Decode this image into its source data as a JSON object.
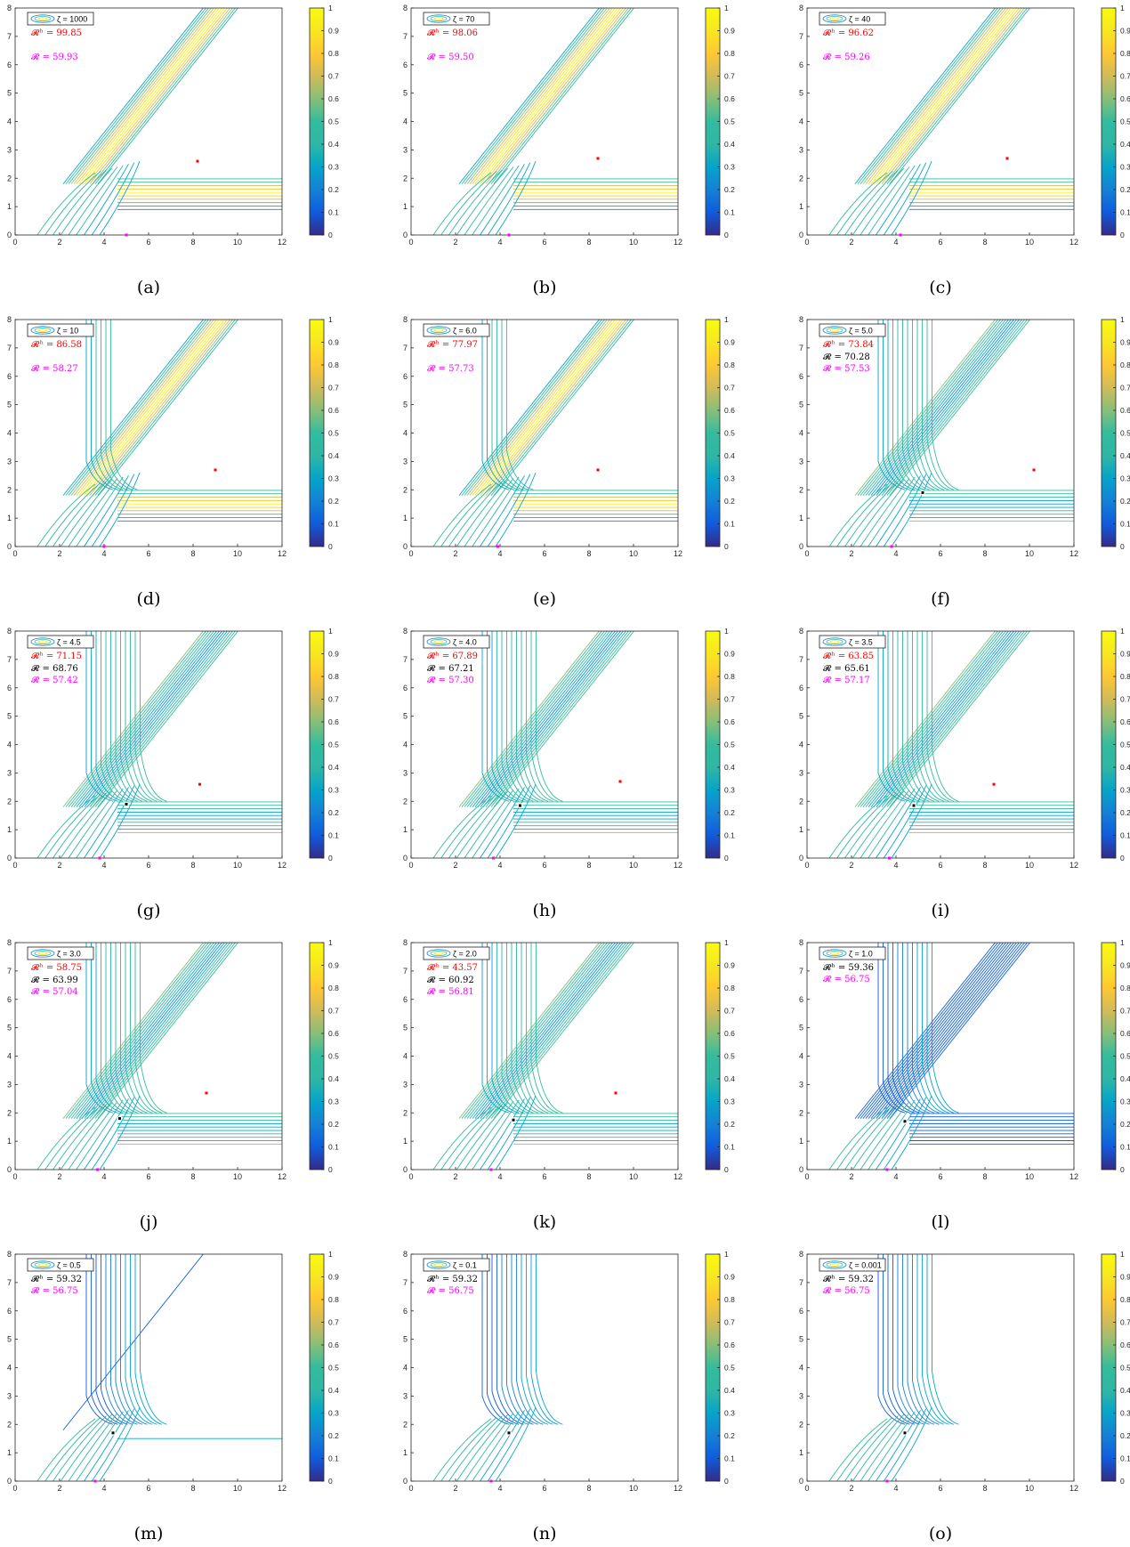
{
  "figure": {
    "x_ticks": [
      "0",
      "2",
      "4",
      "6",
      "8",
      "10",
      "12"
    ],
    "y_ticks": [
      "0",
      "1",
      "2",
      "3",
      "4",
      "5",
      "6",
      "7",
      "8"
    ],
    "colorbar_ticks": [
      "0",
      "0.1",
      "0.2",
      "0.3",
      "0.4",
      "0.5",
      "0.6",
      "0.7",
      "0.8",
      "0.9",
      "1"
    ],
    "colors": {
      "red_text": "#ff0000",
      "magenta_text": "#ff00ff",
      "black_text": "#000000"
    },
    "panels": [
      {
        "caption": "(a)",
        "zeta": "ζ = 1000",
        "lines": [
          {
            "prefix": "𝓡ʰ",
            "value": "= 99.85",
            "color": "red"
          },
          {
            "prefix": "𝓡",
            "value": "= 59.93",
            "color": "magenta"
          }
        ],
        "red_marker": [
          8.2,
          2.6
        ],
        "magenta_marker": [
          5.0,
          0
        ],
        "black_marker": null,
        "style": "A"
      },
      {
        "caption": "(b)",
        "zeta": "ζ = 70",
        "lines": [
          {
            "prefix": "𝓡ʰ",
            "value": "= 98.06",
            "color": "red"
          },
          {
            "prefix": "𝓡",
            "value": "= 59.50",
            "color": "magenta"
          }
        ],
        "red_marker": [
          8.4,
          2.7
        ],
        "magenta_marker": [
          4.4,
          0
        ],
        "black_marker": null,
        "style": "A"
      },
      {
        "caption": "(c)",
        "zeta": "ζ = 40",
        "lines": [
          {
            "prefix": "𝓡ʰ",
            "value": "= 96.62",
            "color": "red"
          },
          {
            "prefix": "𝓡",
            "value": "= 59.26",
            "color": "magenta"
          }
        ],
        "red_marker": [
          9.0,
          2.7
        ],
        "magenta_marker": [
          4.2,
          0
        ],
        "black_marker": null,
        "style": "A"
      },
      {
        "caption": "(d)",
        "zeta": "ζ = 10",
        "lines": [
          {
            "prefix": "𝓡ʰ",
            "value": "= 86.58",
            "color": "red"
          },
          {
            "prefix": "𝓡",
            "value": "= 58.27",
            "color": "magenta"
          }
        ],
        "red_marker": [
          9.0,
          2.7
        ],
        "magenta_marker": [
          4.0,
          0
        ],
        "black_marker": null,
        "style": "B"
      },
      {
        "caption": "(e)",
        "zeta": "ζ = 6.0",
        "lines": [
          {
            "prefix": "𝓡ʰ",
            "value": "= 77.97",
            "color": "red"
          },
          {
            "prefix": "𝓡",
            "value": "= 57.73",
            "color": "magenta"
          }
        ],
        "red_marker": [
          8.4,
          2.7
        ],
        "magenta_marker": [
          3.9,
          0
        ],
        "black_marker": null,
        "style": "B"
      },
      {
        "caption": "(f)",
        "zeta": "ζ = 5.0",
        "lines": [
          {
            "prefix": "𝓡ʰ",
            "value": "= 73.84",
            "color": "red"
          },
          {
            "prefix": "𝓡",
            "value": "= 70.28",
            "color": "black"
          },
          {
            "prefix": "𝓡",
            "value": "= 57.53",
            "color": "magenta"
          }
        ],
        "red_marker": [
          10.2,
          2.7
        ],
        "magenta_marker": [
          3.8,
          0
        ],
        "black_marker": [
          5.2,
          1.9
        ],
        "style": "C"
      },
      {
        "caption": "(g)",
        "zeta": "ζ = 4.5",
        "lines": [
          {
            "prefix": "𝓡ʰ",
            "value": "= 71.15",
            "color": "red"
          },
          {
            "prefix": "𝓡",
            "value": "= 68.76",
            "color": "black"
          },
          {
            "prefix": "𝓡",
            "value": "= 57.42",
            "color": "magenta"
          }
        ],
        "red_marker": [
          8.3,
          2.6
        ],
        "magenta_marker": [
          3.8,
          0
        ],
        "black_marker": [
          5.0,
          1.9
        ],
        "style": "C"
      },
      {
        "caption": "(h)",
        "zeta": "ζ = 4.0",
        "lines": [
          {
            "prefix": "𝓡ʰ",
            "value": "= 67.89",
            "color": "red"
          },
          {
            "prefix": "𝓡",
            "value": "= 67.21",
            "color": "black"
          },
          {
            "prefix": "𝓡",
            "value": "= 57.30",
            "color": "magenta"
          }
        ],
        "red_marker": [
          9.4,
          2.7
        ],
        "magenta_marker": [
          3.7,
          0
        ],
        "black_marker": [
          4.9,
          1.85
        ],
        "style": "C"
      },
      {
        "caption": "(i)",
        "zeta": "ζ = 3.5",
        "lines": [
          {
            "prefix": "𝓡ʰ",
            "value": "= 63.85",
            "color": "red"
          },
          {
            "prefix": "𝓡",
            "value": "= 65.61",
            "color": "black"
          },
          {
            "prefix": "𝓡",
            "value": "= 57.17",
            "color": "magenta"
          }
        ],
        "red_marker": [
          8.4,
          2.6
        ],
        "magenta_marker": [
          3.7,
          0
        ],
        "black_marker": [
          4.8,
          1.85
        ],
        "style": "D"
      },
      {
        "caption": "(j)",
        "zeta": "ζ = 3.0",
        "lines": [
          {
            "prefix": "𝓡ʰ",
            "value": "= 58.75",
            "color": "red"
          },
          {
            "prefix": "𝓡",
            "value": "= 63.99",
            "color": "black"
          },
          {
            "prefix": "𝓡",
            "value": "= 57.04",
            "color": "magenta"
          }
        ],
        "red_marker": [
          8.6,
          2.7
        ],
        "magenta_marker": [
          3.7,
          0
        ],
        "black_marker": [
          4.7,
          1.8
        ],
        "style": "D"
      },
      {
        "caption": "(k)",
        "zeta": "ζ = 2.0",
        "lines": [
          {
            "prefix": "𝓡ʰ",
            "value": "= 43.57",
            "color": "red"
          },
          {
            "prefix": "𝓡",
            "value": "= 60.92",
            "color": "black"
          },
          {
            "prefix": "𝓡",
            "value": "= 56.81",
            "color": "magenta"
          }
        ],
        "red_marker": [
          9.2,
          2.7
        ],
        "magenta_marker": [
          3.6,
          0
        ],
        "black_marker": [
          4.6,
          1.75
        ],
        "style": "E"
      },
      {
        "caption": "(l)",
        "zeta": "ζ = 1.0",
        "lines": [
          {
            "prefix": "𝓡ʰ",
            "value": "= 59.36",
            "color": "black"
          },
          {
            "prefix": "𝓡",
            "value": "= 56.75",
            "color": "magenta"
          }
        ],
        "red_marker": null,
        "magenta_marker": [
          3.6,
          0
        ],
        "black_marker": [
          4.4,
          1.7
        ],
        "style": "F"
      },
      {
        "caption": "(m)",
        "zeta": "ζ = 0.5",
        "lines": [
          {
            "prefix": "𝓡ʰ",
            "value": "= 59.32",
            "color": "black"
          },
          {
            "prefix": "𝓡",
            "value": "= 56.75",
            "color": "magenta"
          }
        ],
        "red_marker": null,
        "magenta_marker": [
          3.6,
          0
        ],
        "black_marker": [
          4.4,
          1.7
        ],
        "style": "G"
      },
      {
        "caption": "(n)",
        "zeta": "ζ = 0.1",
        "lines": [
          {
            "prefix": "𝓡ʰ",
            "value": "= 59.32",
            "color": "black"
          },
          {
            "prefix": "𝓡",
            "value": "= 56.75",
            "color": "magenta"
          }
        ],
        "red_marker": null,
        "magenta_marker": [
          3.6,
          0
        ],
        "black_marker": [
          4.4,
          1.7
        ],
        "style": "H"
      },
      {
        "caption": "(o)",
        "zeta": "ζ = 0.001",
        "lines": [
          {
            "prefix": "𝓡ʰ",
            "value": "= 59.32",
            "color": "black"
          },
          {
            "prefix": "𝓡",
            "value": "= 56.75",
            "color": "magenta"
          }
        ],
        "red_marker": null,
        "magenta_marker": [
          3.6,
          0
        ],
        "black_marker": [
          4.4,
          1.7
        ],
        "style": "H"
      }
    ]
  },
  "chart_data": {
    "type": "contour",
    "panel_count": 15,
    "xlim": [
      0,
      12
    ],
    "ylim": [
      0,
      8
    ],
    "colorbar_range": [
      0,
      1
    ],
    "colormap": "parula",
    "zeta_values": [
      1000,
      70,
      40,
      10,
      6.0,
      5.0,
      4.5,
      4.0,
      3.5,
      3.0,
      2.0,
      1.0,
      0.5,
      0.1,
      0.001
    ],
    "R_h": [
      99.85,
      98.06,
      96.62,
      86.58,
      77.97,
      73.84,
      71.15,
      67.89,
      63.85,
      58.75,
      43.57,
      59.36,
      59.32,
      59.32,
      59.32
    ],
    "R_black": [
      null,
      null,
      null,
      null,
      null,
      70.28,
      68.76,
      67.21,
      65.61,
      63.99,
      60.92,
      null,
      null,
      null,
      null
    ],
    "R_magenta": [
      59.93,
      59.5,
      59.26,
      58.27,
      57.73,
      57.53,
      57.42,
      57.3,
      57.17,
      57.04,
      56.81,
      56.75,
      56.75,
      56.75,
      56.75
    ]
  }
}
